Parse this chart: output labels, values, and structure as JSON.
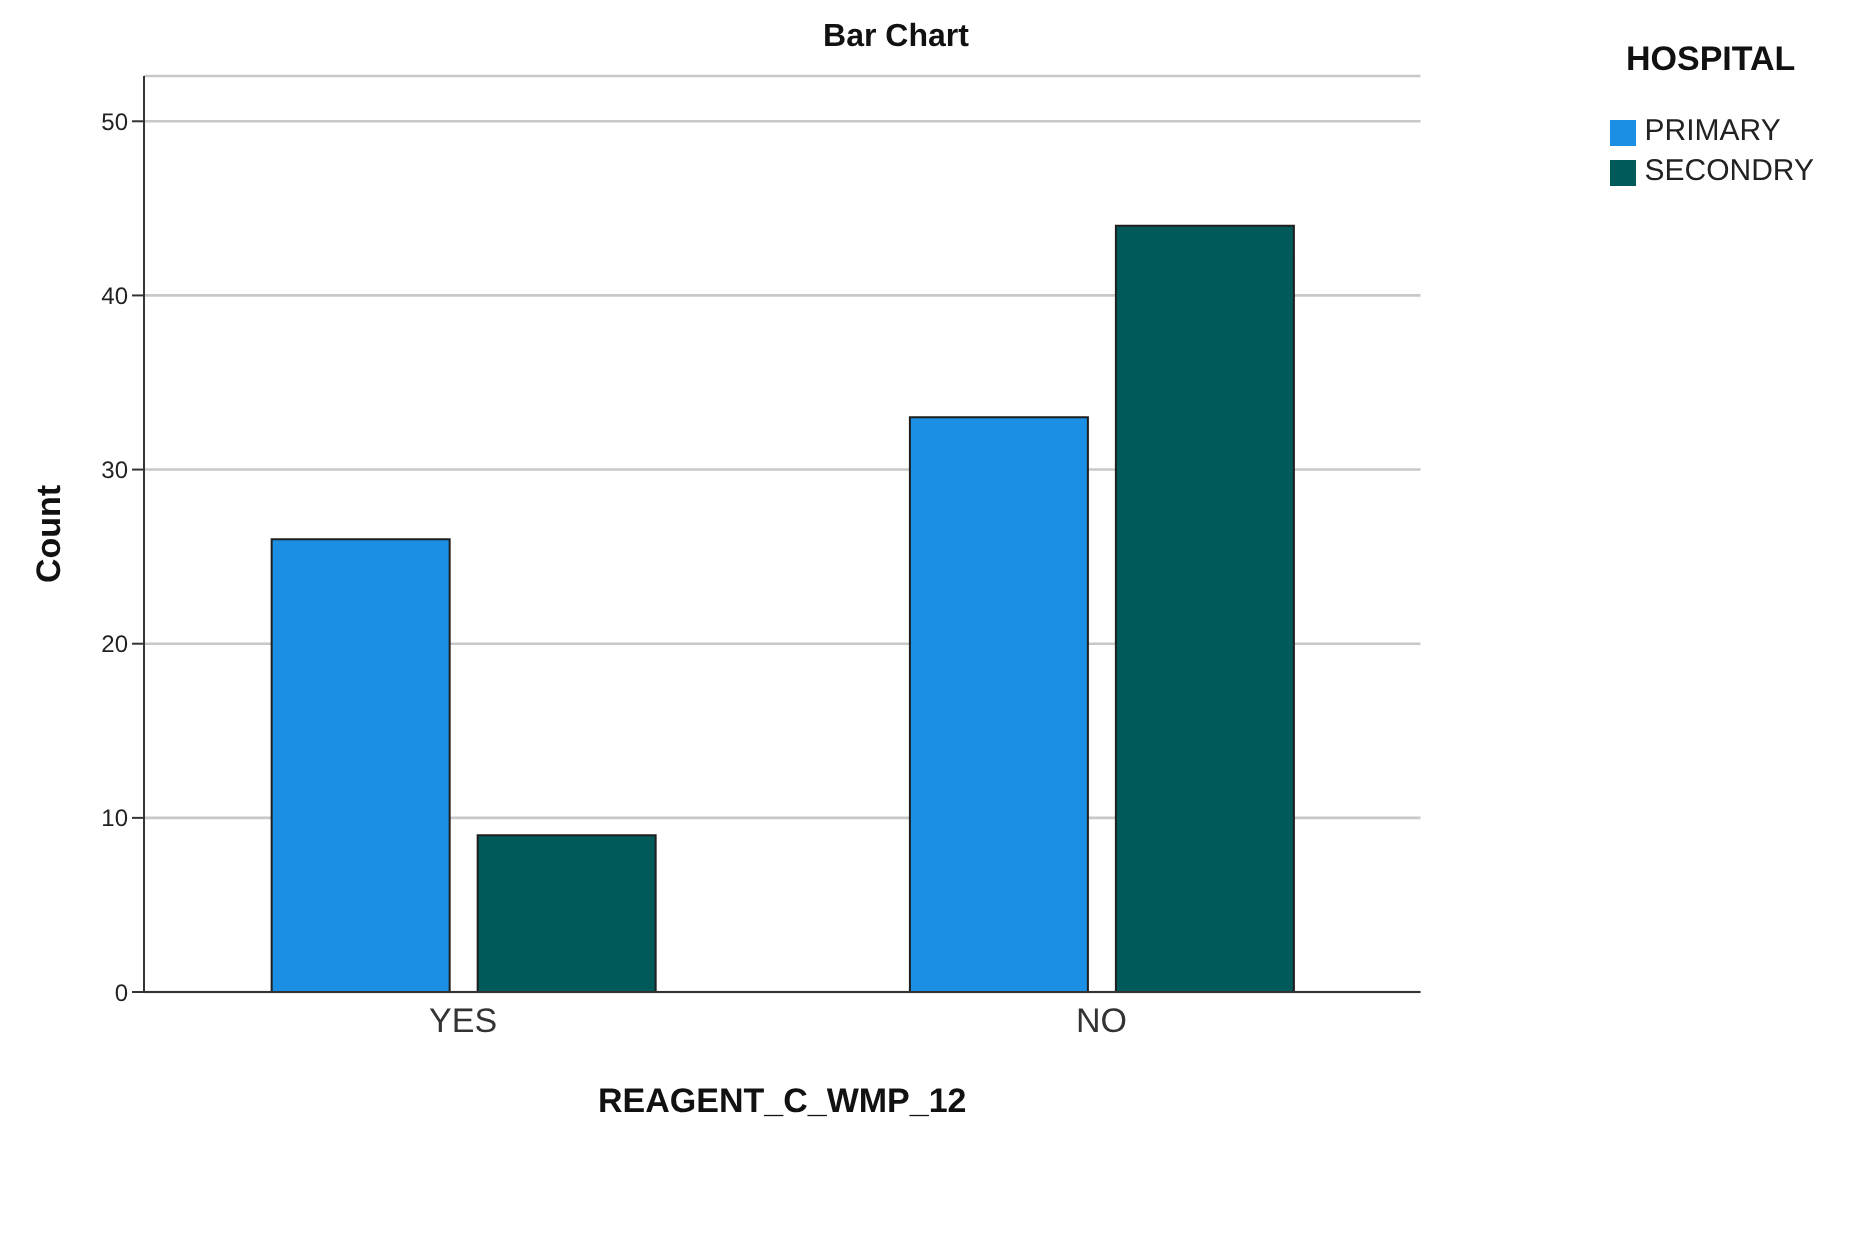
{
  "chart_data": {
    "type": "bar",
    "title": "Bar Chart",
    "xlabel": "REAGENT_C_WMP_12",
    "ylabel": "Count",
    "legend_title": "HOSPITAL",
    "categories": [
      "YES",
      "NO"
    ],
    "series": [
      {
        "name": "PRIMARY",
        "color": "#1a8fe3",
        "values": [
          26,
          33
        ]
      },
      {
        "name": "SECONDRY",
        "color": "#005a5a",
        "values": [
          9,
          44
        ]
      }
    ],
    "ylim": [
      0,
      52.6
    ],
    "yticks": [
      0,
      10,
      20,
      30,
      40,
      50
    ],
    "grid": "y",
    "legend": "top right"
  }
}
